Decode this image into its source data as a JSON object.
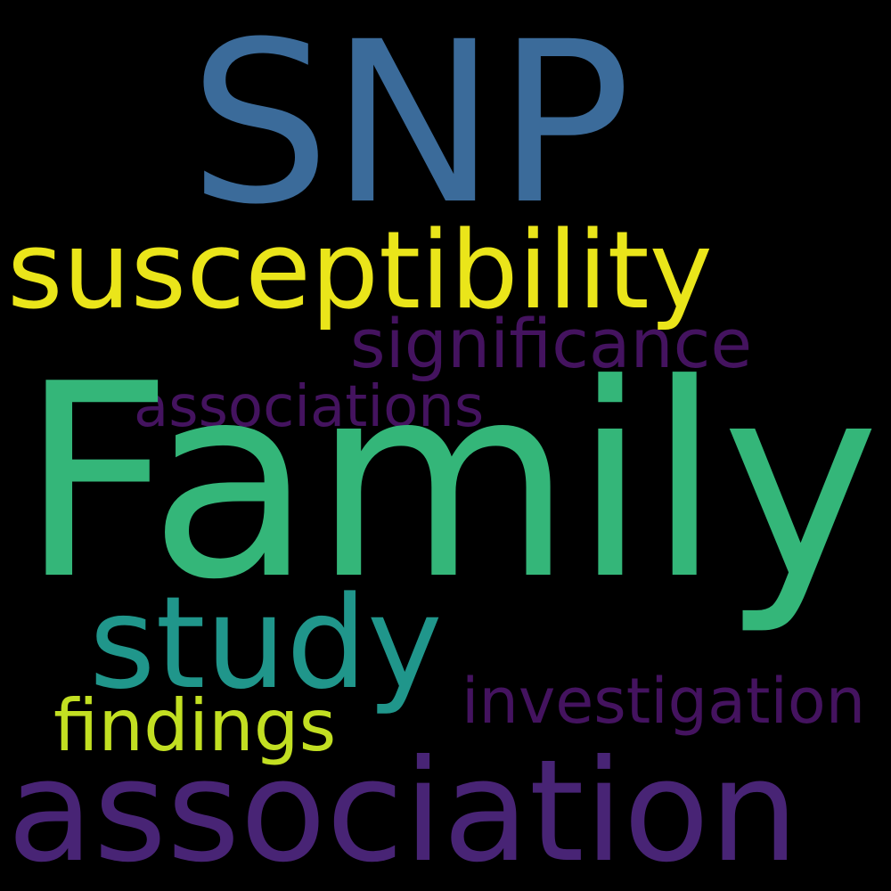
{
  "words": [
    {
      "id": "snp",
      "text": "SNP",
      "color": "#3b6b9a"
    },
    {
      "id": "susceptibility",
      "text": "susceptibility",
      "color": "#eae51a"
    },
    {
      "id": "significance",
      "text": "significance",
      "color": "#44135f"
    },
    {
      "id": "associations",
      "text": "associations",
      "color": "#44135f"
    },
    {
      "id": "family",
      "text": "Family",
      "color": "#34b679"
    },
    {
      "id": "study",
      "text": "study",
      "color": "#20968b"
    },
    {
      "id": "investigation",
      "text": "investigation",
      "color": "#44135f"
    },
    {
      "id": "findings",
      "text": "findings",
      "color": "#c2df22"
    },
    {
      "id": "association",
      "text": "association",
      "color": "#482475"
    }
  ]
}
